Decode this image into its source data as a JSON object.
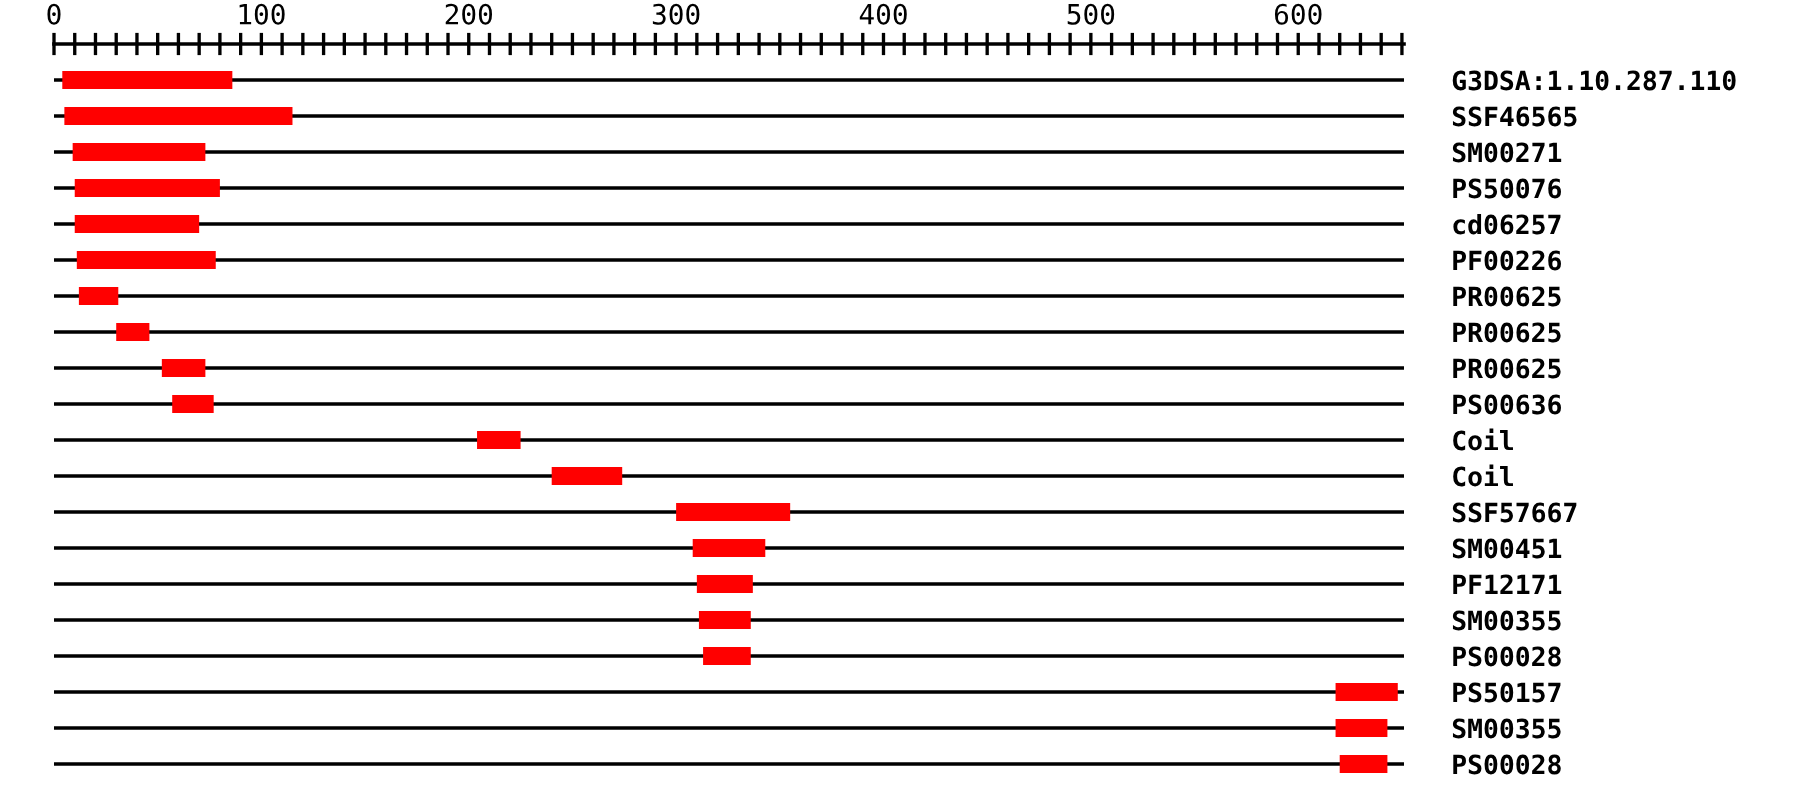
{
  "chart_data": {
    "type": "bar",
    "orientation": "horizontal",
    "categories": [
      "G3DSA:1.10.287.110",
      "SSF46565",
      "SM00271",
      "PS50076",
      "cd06257",
      "PF00226",
      "PR00625",
      "PR00625",
      "PR00625",
      "PS00636",
      "Coil",
      "Coil",
      "SSF57667",
      "SM00451",
      "PF12171",
      "SM00355",
      "PS00028",
      "PS50157",
      "SM00355",
      "PS00028"
    ],
    "base": [
      4,
      5,
      9,
      10,
      10,
      11,
      12,
      30,
      52,
      57,
      204,
      240,
      300,
      308,
      310,
      311,
      313,
      618,
      618,
      620
    ],
    "values": [
      82,
      110,
      64,
      70,
      60,
      67,
      19,
      16,
      21,
      20,
      21,
      34,
      55,
      35,
      27,
      25,
      23,
      30,
      25,
      23
    ],
    "color": "#ff0000",
    "xlim": [
      0,
      651
    ],
    "xticks": [
      0,
      {
        "value": 10,
        "label": null
      },
      {
        "value": 20,
        "label": null
      },
      {
        "value": 30,
        "label": null
      },
      {
        "value": 40,
        "label": null
      },
      {
        "value": 50,
        "label": null
      },
      {
        "value": 60,
        "label": null
      },
      {
        "value": 70,
        "label": null
      },
      {
        "value": 80,
        "label": null
      },
      {
        "value": 90,
        "label": null
      },
      100,
      {
        "value": 110,
        "label": null
      },
      {
        "value": 120,
        "label": null
      },
      {
        "value": 130,
        "label": null
      },
      {
        "value": 140,
        "label": null
      },
      {
        "value": 150,
        "label": null
      },
      {
        "value": 160,
        "label": null
      },
      {
        "value": 170,
        "label": null
      },
      {
        "value": 180,
        "label": null
      },
      {
        "value": 190,
        "label": null
      },
      200,
      {
        "value": 210,
        "label": null
      },
      {
        "value": 220,
        "label": null
      },
      {
        "value": 230,
        "label": null
      },
      {
        "value": 240,
        "label": null
      },
      {
        "value": 250,
        "label": null
      },
      {
        "value": 260,
        "label": null
      },
      {
        "value": 270,
        "label": null
      },
      {
        "value": 280,
        "label": null
      },
      {
        "value": 290,
        "label": null
      },
      300,
      {
        "value": 310,
        "label": null
      },
      {
        "value": 320,
        "label": null
      },
      {
        "value": 330,
        "label": null
      },
      {
        "value": 340,
        "label": null
      },
      {
        "value": 350,
        "label": null
      },
      {
        "value": 360,
        "label": null
      },
      {
        "value": 370,
        "label": null
      },
      {
        "value": 380,
        "label": null
      },
      {
        "value": 390,
        "label": null
      },
      400,
      {
        "value": 410,
        "label": null
      },
      {
        "value": 420,
        "label": null
      },
      {
        "value": 430,
        "label": null
      },
      {
        "value": 440,
        "label": null
      },
      {
        "value": 450,
        "label": null
      },
      {
        "value": 460,
        "label": null
      },
      {
        "value": 470,
        "label": null
      },
      {
        "value": 480,
        "label": null
      },
      {
        "value": 490,
        "label": null
      },
      500,
      {
        "value": 510,
        "label": null
      },
      {
        "value": 520,
        "label": null
      },
      {
        "value": 530,
        "label": null
      },
      {
        "value": 540,
        "label": null
      },
      {
        "value": 550,
        "label": null
      },
      {
        "value": 560,
        "label": null
      },
      {
        "value": 570,
        "label": null
      },
      {
        "value": 580,
        "label": null
      },
      {
        "value": 590,
        "label": null
      },
      600,
      {
        "value": 610,
        "label": null
      },
      {
        "value": 620,
        "label": null
      },
      {
        "value": 630,
        "label": null
      },
      {
        "value": 640,
        "label": null
      },
      {
        "value": 650,
        "label": null
      }
    ]
  }
}
